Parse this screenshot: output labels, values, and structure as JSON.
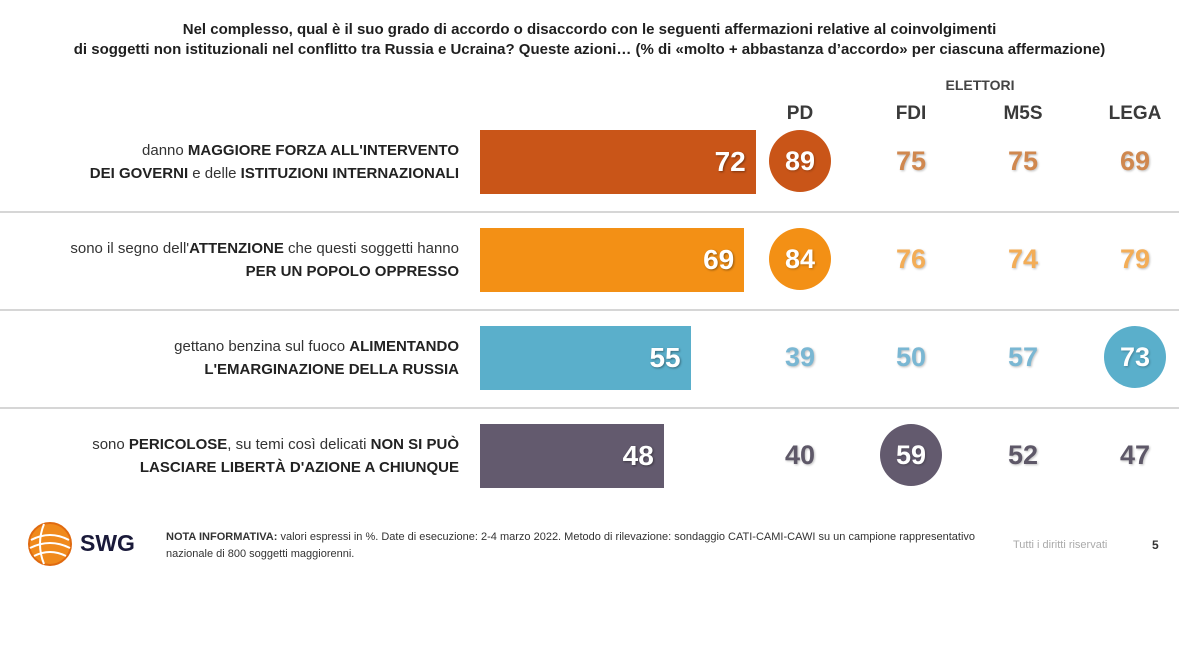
{
  "title_line1": "Nel complesso, qual è il suo grado di accordo o disaccordo con le seguenti affermazioni relative al coinvolgimenti",
  "title_line2": "di soggetti non istituzionali nel conflitto tra Russia e Ucraina? Queste azioni… (% di «molto + abbastanza d’accordo» per ciascuna affermazione)",
  "elettori_label": "ELETTORI",
  "parties": [
    "PD",
    "FDI",
    "M5S",
    "LEGA"
  ],
  "chart_data": {
    "type": "bar",
    "title": "Nel complesso, qual è il suo grado di accordo o disaccordo con le seguenti affermazioni relative al coinvolgimenti di soggetti non istituzionali nel conflitto tra Russia e Ucraina? Queste azioni… (% di «molto + abbastanza d’accordo» per ciascuna affermazione)",
    "unit": "%",
    "categories": [
      "danno MAGGIORE FORZA ALL'INTERVENTO DEI GOVERNI e delle ISTITUZIONI INTERNAZIONALI",
      "sono il segno dell'ATTENZIONE che questi soggetti hanno PER UN POPOLO OPPRESSO",
      "gettano benzina sul fuoco ALIMENTANDO L'EMARGINAZIONE DELLA RUSSIA",
      "sono PERICOLOSE, su temi così delicati NON SI PUÒ LASCIARE LIBERTÀ D'AZIONE A CHIUNQUE"
    ],
    "values": [
      72,
      69,
      55,
      48
    ],
    "ylim": [
      0,
      100
    ],
    "row_colors": [
      "#c95518",
      "#f39015",
      "#5aafcb",
      "#635a6e"
    ],
    "party_values": {
      "PD": [
        89,
        84,
        39,
        40
      ],
      "FDI": [
        75,
        76,
        50,
        59
      ],
      "M5S": [
        75,
        74,
        57,
        52
      ],
      "LEGA": [
        69,
        79,
        73,
        47
      ]
    },
    "highlighted": [
      "PD",
      "PD",
      "LEGA",
      "FDI"
    ]
  },
  "rows": [
    {
      "l1": [
        [
          "danno ",
          false
        ],
        [
          "MAGGIORE FORZA ALL'INTERVENTO",
          true
        ]
      ],
      "l2": [
        [
          "DEI GOVERNI",
          true
        ],
        [
          " e delle ",
          false
        ],
        [
          "ISTITUZIONI INTERNAZIONALI",
          true
        ]
      ]
    },
    {
      "l1": [
        [
          "sono il segno dell'",
          false
        ],
        [
          "ATTENZIONE",
          true
        ],
        [
          " che questi soggetti hanno",
          false
        ]
      ],
      "l2": [
        [
          "PER UN POPOLO OPPRESSO",
          true
        ]
      ]
    },
    {
      "l1": [
        [
          "gettano benzina sul fuoco ",
          false
        ],
        [
          "ALIMENTANDO",
          true
        ]
      ],
      "l2": [
        [
          "L'EMARGINAZIONE DELLA RUSSIA",
          true
        ]
      ]
    },
    {
      "l1": [
        [
          "sono ",
          false
        ],
        [
          "PERICOLOSE",
          true
        ],
        [
          ", su temi così delicati ",
          false
        ],
        [
          "NON SI PUÒ",
          true
        ]
      ],
      "l2": [
        [
          "LASCIARE LIBERTÀ D'AZIONE A CHIUNQUE",
          true
        ]
      ]
    }
  ],
  "footer": {
    "brand": "SWG",
    "note_bold": "NOTA INFORMATIVA:",
    "note_text": " valori espressi in %. Date di esecuzione: 2-4 marzo 2022. Metodo di rilevazione: sondaggio CATI-CAMI-CAWI su un campione rappresentativo nazionale di 800 soggetti maggiorenni.",
    "rights": "Tutti i diritti riservati",
    "page": "5"
  }
}
